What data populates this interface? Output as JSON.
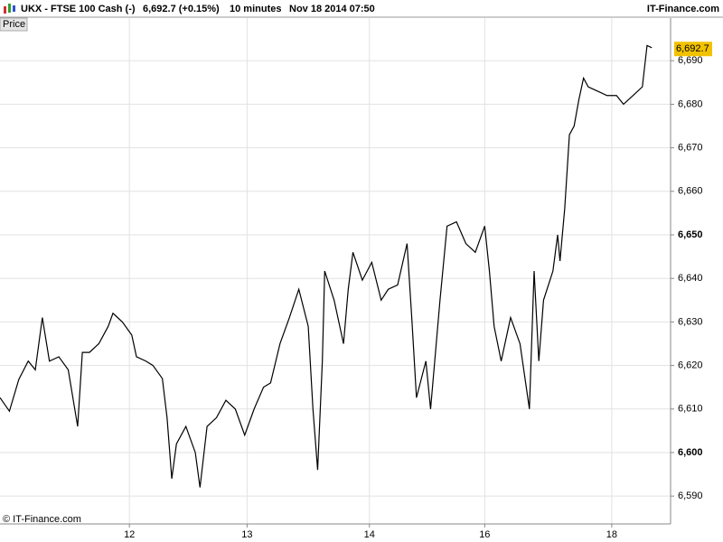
{
  "header": {
    "symbol": "UKX - FTSE 100 Cash (-)",
    "quote": "6,692.7 (+0.15%)",
    "interval": "10 minutes",
    "datetime": "Nov 18 2014 07:50",
    "brand": "IT-Finance.com"
  },
  "panel_tab": "Price",
  "copyright": "© IT-Finance.com",
  "chart_data": {
    "type": "line",
    "series": [
      {
        "name": "Price",
        "color": "#000000",
        "x": [
          0,
          4,
          8,
          12,
          15,
          18,
          21,
          25,
          29,
          33,
          35,
          38,
          42,
          46,
          48,
          52,
          56,
          58,
          62,
          65,
          69,
          71,
          73,
          75,
          79,
          83,
          85,
          88,
          92,
          96,
          100,
          104,
          108,
          112,
          115,
          119,
          123,
          127,
          131,
          133,
          135,
          137,
          138,
          142,
          146,
          148,
          150,
          154,
          158,
          162,
          165,
          169,
          173,
          175,
          177,
          181,
          183,
          187,
          190,
          194,
          198,
          202,
          206,
          208,
          210,
          213,
          217,
          221,
          225,
          227,
          229,
          231,
          235,
          237,
          238,
          240,
          242,
          244,
          246,
          248,
          250,
          254,
          258,
          262,
          265,
          269,
          273,
          275,
          277
        ],
        "values": [
          6612.6,
          6609.5,
          6616.8,
          6621,
          6619,
          6631,
          6621,
          6622,
          6619,
          6606,
          6623,
          6623,
          6625,
          6629,
          6632,
          6630,
          6627,
          6622,
          6621,
          6620,
          6617,
          6608,
          6594,
          6602,
          6606,
          6600,
          6592,
          6606,
          6608,
          6612,
          6610,
          6604,
          6610,
          6615,
          6616,
          6625,
          6631,
          6637.5,
          6629,
          6610,
          6596,
          6621,
          6641.7,
          6635,
          6625,
          6637.5,
          6646,
          6639.6,
          6643.7,
          6635,
          6637.5,
          6638.5,
          6648,
          6631,
          6612.6,
          6621,
          6610,
          6635,
          6652,
          6653,
          6648,
          6646,
          6652,
          6641.7,
          6629,
          6621,
          6631,
          6625,
          6610,
          6641.7,
          6621,
          6635,
          6641.7,
          6650,
          6644,
          6656,
          6673,
          6675,
          6681,
          6686,
          6684,
          6683,
          6682,
          6682,
          6680,
          6682,
          6684,
          6693.5,
          6693
        ]
      }
    ],
    "last_price": {
      "value": 6692.7,
      "label": "6,692.7"
    },
    "xlim": [
      0,
      285
    ],
    "xticks": [
      {
        "value": 55,
        "label": "12"
      },
      {
        "value": 105,
        "label": "13"
      },
      {
        "value": 157,
        "label": "14"
      },
      {
        "value": 206,
        "label": "16"
      },
      {
        "value": 260,
        "label": "18"
      }
    ],
    "ylim": [
      6583.6,
      6699.8
    ],
    "yticks": [
      {
        "value": 6590,
        "label": "6,590"
      },
      {
        "value": 6600,
        "label": "6,600"
      },
      {
        "value": 6610,
        "label": "6,610"
      },
      {
        "value": 6620,
        "label": "6,620"
      },
      {
        "value": 6630,
        "label": "6,630"
      },
      {
        "value": 6640,
        "label": "6,640"
      },
      {
        "value": 6650,
        "label": "6,650"
      },
      {
        "value": 6660,
        "label": "6,660"
      },
      {
        "value": 6670,
        "label": "6,670"
      },
      {
        "value": 6680,
        "label": "6,680"
      },
      {
        "value": 6690,
        "label": "6,690"
      }
    ],
    "bold_yticks": [
      6600,
      6650
    ],
    "grid": true
  }
}
